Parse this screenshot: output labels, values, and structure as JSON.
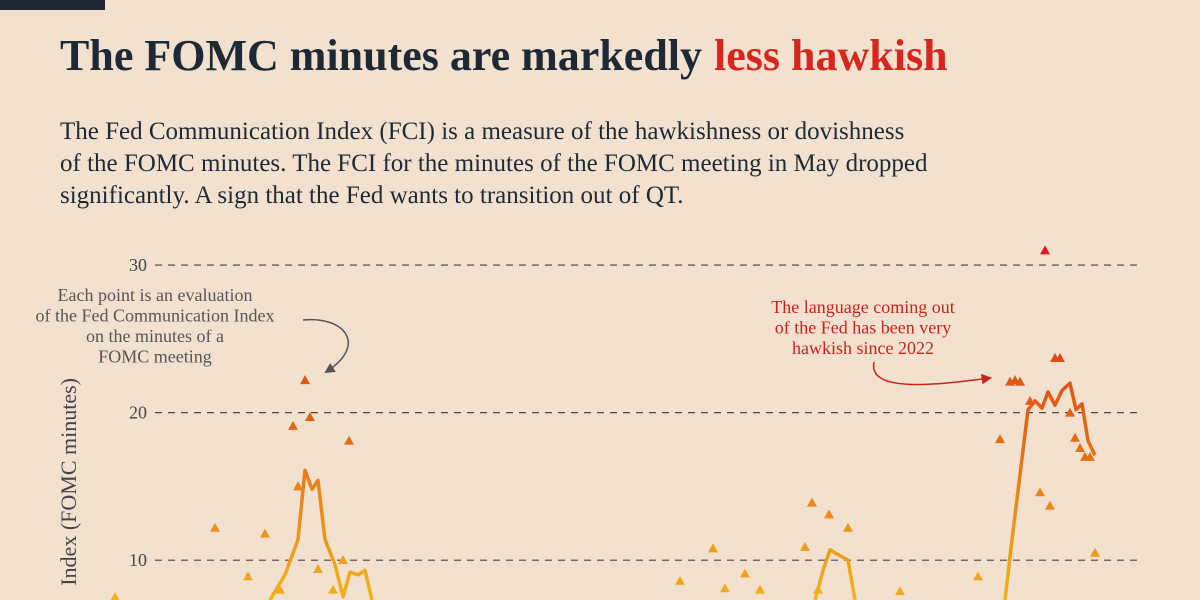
{
  "chart_data": {
    "type": "scatter",
    "title": "The FOMC minutes are markedly",
    "title_highlight": "less hawkish",
    "subtitle": [
      "The Fed Communication Index (FCI) is a measure of the hawkishness or dovishness",
      "of the FOMC minutes. The FCI for the minutes of the FOMC meeting in May dropped",
      "significantly. A sign that the Fed wants to transition out of QT."
    ],
    "y_label": "Index (FOMC minutes)",
    "ylim": [
      7.3,
      31.7
    ],
    "yticks": [
      10,
      20,
      30
    ],
    "xlim": [
      0,
      99
    ],
    "grid": true,
    "colors": [
      "#f2b21c",
      "#e36414",
      "#d7191c"
    ],
    "highlight_color": "#d7261e",
    "series": [
      {
        "marker": "triangle",
        "x": [
          0.5,
          10.5,
          13.8,
          15.5,
          17.0,
          18.3,
          18.8,
          19.5,
          20.0,
          20.8,
          22.3,
          23.3,
          23.9,
          57.0,
          60.3,
          61.5,
          63.5,
          65.0,
          69.5,
          70.2,
          70.8,
          71.9,
          73.8,
          79.0,
          86.8,
          89.0,
          90.0,
          90.5,
          91.0,
          92.0,
          93.0,
          93.5,
          94.0,
          94.5,
          95.0,
          96.0,
          96.5,
          97.0,
          97.5,
          98.0,
          98.5
        ],
        "values": [
          7.5,
          12.2,
          8.9,
          11.8,
          8.0,
          19.1,
          15.0,
          22.2,
          19.7,
          9.4,
          8.0,
          10.0,
          18.1,
          8.6,
          10.8,
          8.1,
          9.1,
          8.0,
          10.9,
          13.9,
          8.0,
          13.1,
          12.2,
          7.9,
          8.9,
          18.2,
          22.1,
          22.2,
          22.1,
          20.8,
          14.6,
          31.0,
          13.7,
          23.7,
          23.7,
          20.0,
          18.3,
          17.6,
          17.0,
          17.0,
          10.5
        ]
      },
      {
        "marker": "none",
        "x": [
          16.0,
          17.5,
          18.8,
          19.5,
          20.2,
          20.8,
          21.5,
          22.5,
          23.3,
          24.0,
          24.8,
          25.5,
          26.2,
          60.0,
          70.5,
          71.3,
          72.0,
          73.0,
          73.8,
          74.5,
          80.0,
          89.5,
          90.2,
          91.0,
          91.8,
          92.5,
          93.2,
          93.8,
          94.5,
          95.2,
          96.0,
          96.6,
          97.2,
          97.8,
          98.5
        ],
        "values": [
          7.3,
          9.0,
          11.4,
          16.1,
          14.8,
          15.4,
          11.4,
          9.7,
          7.5,
          9.2,
          9.0,
          9.3,
          7.3,
          null,
          7.3,
          9.3,
          10.7,
          10.3,
          10.0,
          7.3,
          null,
          7.3,
          11.4,
          15.8,
          20.2,
          20.8,
          20.3,
          21.4,
          20.5,
          21.5,
          22.0,
          20.2,
          20.6,
          18.1,
          17.1
        ]
      }
    ],
    "annotations": [
      {
        "lines": [
          "Each point is an evaluation",
          "of the Fed Communication Index",
          "on the minutes of a",
          "FOMC meeting"
        ],
        "color": "#555555"
      },
      {
        "lines": [
          "The language coming out",
          "of the Fed has been very",
          "hawkish since 2022"
        ],
        "color": "#c8241c"
      }
    ]
  }
}
